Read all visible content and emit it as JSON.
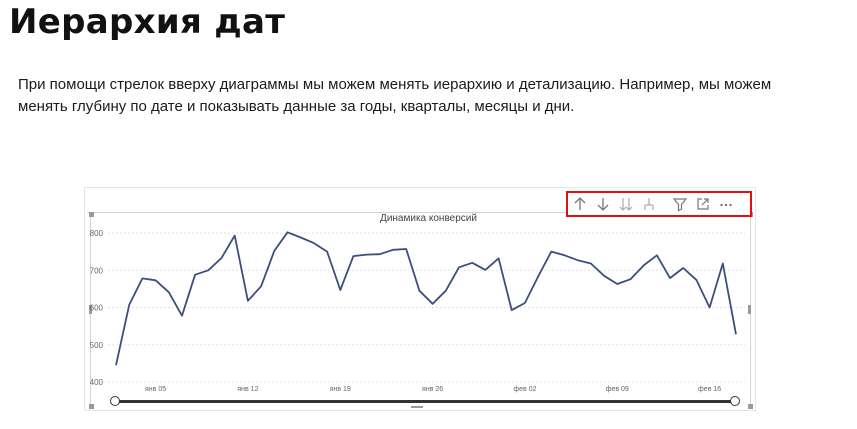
{
  "page": {
    "title": "Иерархия дат",
    "paragraph_line1": "При помощи стрелок вверху диаграммы мы можем менять иерархию и детализацию. Например, мы можем",
    "paragraph_line2": "менять глубину  по дате и показывать данные за годы, кварталы, месяцы и дни."
  },
  "toolbar": {
    "border_color": "#e01010",
    "buttons": [
      {
        "name": "drill-up-icon"
      },
      {
        "name": "drill-down-icon"
      },
      {
        "name": "expand-all-down-icon"
      },
      {
        "name": "expand-next-level-icon"
      },
      {
        "name": "filter-icon"
      },
      {
        "name": "focus-mode-icon"
      },
      {
        "name": "more-options-icon"
      }
    ]
  },
  "chart_data": {
    "type": "line",
    "title": "Динамика конверсий",
    "xlabel": "",
    "ylabel": "",
    "ylim": [
      380,
      820
    ],
    "y_ticks": [
      400,
      500,
      600,
      700,
      800
    ],
    "x_ticks": [
      "янв 05",
      "янв 12",
      "янв 19",
      "янв 26",
      "фев 02",
      "фев 09",
      "фев 16"
    ],
    "x_tick_day_index": [
      3,
      10,
      17,
      24,
      31,
      38,
      45
    ],
    "grid": true,
    "line_color": "#3b4f7c",
    "series": [
      {
        "name": "",
        "values": [
          445,
          607,
          678,
          673,
          641,
          578,
          688,
          700,
          733,
          793,
          618,
          657,
          752,
          802,
          788,
          773,
          750,
          647,
          738,
          742,
          743,
          755,
          757,
          645,
          610,
          645,
          708,
          720,
          701,
          732,
          593,
          612,
          683,
          750,
          740,
          727,
          718,
          685,
          663,
          676,
          713,
          740,
          679,
          706,
          674,
          600,
          718,
          528
        ]
      }
    ]
  }
}
